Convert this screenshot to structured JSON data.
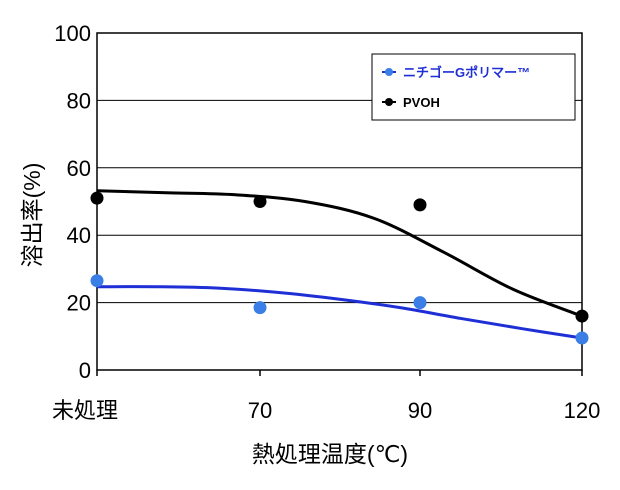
{
  "chart_data": {
    "type": "scatter",
    "title": "",
    "xlabel": "熱処理温度(℃)",
    "ylabel": "溶出率(%)",
    "categories": [
      "未処理",
      "70",
      "90",
      "120"
    ],
    "ylim": [
      0,
      100
    ],
    "yticks": [
      0,
      20,
      40,
      60,
      80,
      100
    ],
    "grid": true,
    "legend_position": "top-right",
    "series": [
      {
        "name": "ニチゴーGポリマー™",
        "color": "#3a7ee6",
        "line_color": "#1f2fd6",
        "values": [
          26.5,
          18.5,
          20,
          9.5
        ],
        "trend": [
          24.7,
          24.7,
          24.3,
          23.0,
          21.0,
          18.5,
          15.3,
          12.3,
          9.5
        ]
      },
      {
        "name": "PVOH",
        "color": "#000000",
        "line_color": "#000000",
        "values": [
          51,
          50,
          49,
          16
        ],
        "trend": [
          53.2,
          52.6,
          52,
          50,
          45,
          35,
          24,
          16
        ]
      }
    ]
  }
}
